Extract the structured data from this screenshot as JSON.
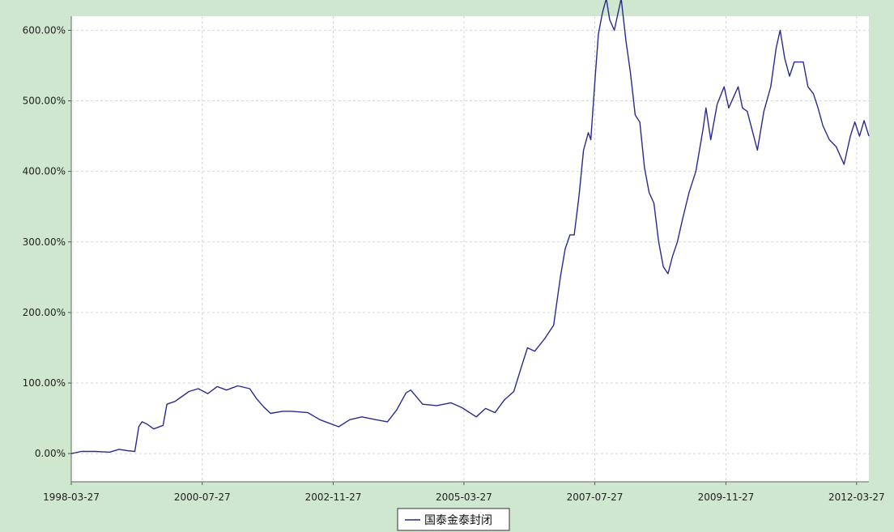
{
  "chart_data": {
    "type": "line",
    "title": "",
    "xlabel": "",
    "ylabel": "",
    "grid": true,
    "legend_position": "bottom-center",
    "ylim": [
      -0.4,
      6.2
    ],
    "xlim": [
      "1998-03-27",
      "2012-06-15"
    ],
    "x_ticks": [
      "1998-03-27",
      "2000-07-27",
      "2002-11-27",
      "2005-03-27",
      "2007-07-27",
      "2009-11-27",
      "2012-03-27"
    ],
    "y_ticks": [
      0,
      1,
      2,
      3,
      4,
      5,
      6
    ],
    "y_tick_labels": [
      "0.00%",
      "100.00%",
      "200.00%",
      "300.00%",
      "400.00%",
      "500.00%",
      "600.00%"
    ],
    "colors": {
      "frame_background": "#cfe6cf",
      "plot_background": "#ffffff",
      "line": "#2a2a8c",
      "grid": "#d6d6d6"
    },
    "series": [
      {
        "name": "国泰金泰封闭",
        "points": [
          [
            "1998-03-27",
            0.0
          ],
          [
            "1998-06-01",
            0.03
          ],
          [
            "1998-09-01",
            0.03
          ],
          [
            "1998-12-01",
            0.02
          ],
          [
            "1999-02-01",
            0.06
          ],
          [
            "1999-04-01",
            0.04
          ],
          [
            "1999-05-15",
            0.03
          ],
          [
            "1999-06-10",
            0.38
          ],
          [
            "1999-07-01",
            0.45
          ],
          [
            "1999-08-01",
            0.42
          ],
          [
            "1999-09-15",
            0.35
          ],
          [
            "1999-11-15",
            0.4
          ],
          [
            "1999-12-10",
            0.7
          ],
          [
            "2000-02-01",
            0.74
          ],
          [
            "2000-05-01",
            0.88
          ],
          [
            "2000-07-01",
            0.92
          ],
          [
            "2000-09-01",
            0.85
          ],
          [
            "2000-11-01",
            0.95
          ],
          [
            "2001-01-01",
            0.9
          ],
          [
            "2001-03-15",
            0.96
          ],
          [
            "2001-06-01",
            0.92
          ],
          [
            "2001-07-15",
            0.78
          ],
          [
            "2001-09-01",
            0.66
          ],
          [
            "2001-10-15",
            0.57
          ],
          [
            "2002-01-01",
            0.6
          ],
          [
            "2002-03-01",
            0.6
          ],
          [
            "2002-06-15",
            0.58
          ],
          [
            "2002-09-01",
            0.48
          ],
          [
            "2003-01-01",
            0.38
          ],
          [
            "2003-03-15",
            0.48
          ],
          [
            "2003-06-01",
            0.52
          ],
          [
            "2003-09-01",
            0.48
          ],
          [
            "2003-11-15",
            0.45
          ],
          [
            "2004-01-15",
            0.62
          ],
          [
            "2004-03-15",
            0.86
          ],
          [
            "2004-04-15",
            0.9
          ],
          [
            "2004-07-01",
            0.7
          ],
          [
            "2004-10-01",
            0.68
          ],
          [
            "2005-01-01",
            0.72
          ],
          [
            "2005-03-15",
            0.65
          ],
          [
            "2005-06-15",
            0.52
          ],
          [
            "2005-08-15",
            0.64
          ],
          [
            "2005-10-15",
            0.58
          ],
          [
            "2005-12-15",
            0.76
          ],
          [
            "2006-02-15",
            0.88
          ],
          [
            "2006-04-01",
            1.2
          ],
          [
            "2006-05-15",
            1.5
          ],
          [
            "2006-07-01",
            1.45
          ],
          [
            "2006-09-01",
            1.62
          ],
          [
            "2006-11-01",
            1.82
          ],
          [
            "2006-12-15",
            2.5
          ],
          [
            "2007-01-15",
            2.9
          ],
          [
            "2007-02-15",
            3.1
          ],
          [
            "2007-03-15",
            3.1
          ],
          [
            "2007-04-15",
            3.65
          ],
          [
            "2007-05-15",
            4.3
          ],
          [
            "2007-06-15",
            4.55
          ],
          [
            "2007-07-01",
            4.45
          ],
          [
            "2007-08-01",
            5.4
          ],
          [
            "2007-08-20",
            5.95
          ],
          [
            "2007-09-15",
            6.25
          ],
          [
            "2007-10-10",
            6.45
          ],
          [
            "2007-11-01",
            6.15
          ],
          [
            "2007-12-01",
            6.0
          ],
          [
            "2008-01-15",
            6.45
          ],
          [
            "2008-02-15",
            5.85
          ],
          [
            "2008-03-15",
            5.4
          ],
          [
            "2008-04-15",
            4.8
          ],
          [
            "2008-05-15",
            4.7
          ],
          [
            "2008-06-15",
            4.05
          ],
          [
            "2008-07-15",
            3.7
          ],
          [
            "2008-08-15",
            3.55
          ],
          [
            "2008-09-15",
            3.0
          ],
          [
            "2008-10-15",
            2.65
          ],
          [
            "2008-11-15",
            2.55
          ],
          [
            "2008-12-15",
            2.8
          ],
          [
            "2009-01-15",
            3.0
          ],
          [
            "2009-02-15",
            3.3
          ],
          [
            "2009-04-01",
            3.7
          ],
          [
            "2009-05-15",
            4.0
          ],
          [
            "2009-07-01",
            4.6
          ],
          [
            "2009-07-20",
            4.9
          ],
          [
            "2009-08-20",
            4.45
          ],
          [
            "2009-10-01",
            4.95
          ],
          [
            "2009-11-15",
            5.2
          ],
          [
            "2009-12-15",
            4.9
          ],
          [
            "2010-01-15",
            5.05
          ],
          [
            "2010-02-15",
            5.2
          ],
          [
            "2010-03-15",
            4.9
          ],
          [
            "2010-04-15",
            4.85
          ],
          [
            "2010-05-15",
            4.6
          ],
          [
            "2010-06-20",
            4.3
          ],
          [
            "2010-08-01",
            4.85
          ],
          [
            "2010-09-15",
            5.2
          ],
          [
            "2010-10-20",
            5.75
          ],
          [
            "2010-11-15",
            6.0
          ],
          [
            "2010-12-15",
            5.6
          ],
          [
            "2011-01-15",
            5.35
          ],
          [
            "2011-02-15",
            5.55
          ],
          [
            "2011-04-15",
            5.55
          ],
          [
            "2011-05-15",
            5.2
          ],
          [
            "2011-06-20",
            5.1
          ],
          [
            "2011-07-20",
            4.9
          ],
          [
            "2011-08-20",
            4.65
          ],
          [
            "2011-10-01",
            4.45
          ],
          [
            "2011-11-15",
            4.35
          ],
          [
            "2012-01-05",
            4.1
          ],
          [
            "2012-02-15",
            4.5
          ],
          [
            "2012-03-15",
            4.7
          ],
          [
            "2012-04-15",
            4.5
          ],
          [
            "2012-05-15",
            4.72
          ],
          [
            "2012-06-15",
            4.5
          ]
        ]
      }
    ]
  }
}
